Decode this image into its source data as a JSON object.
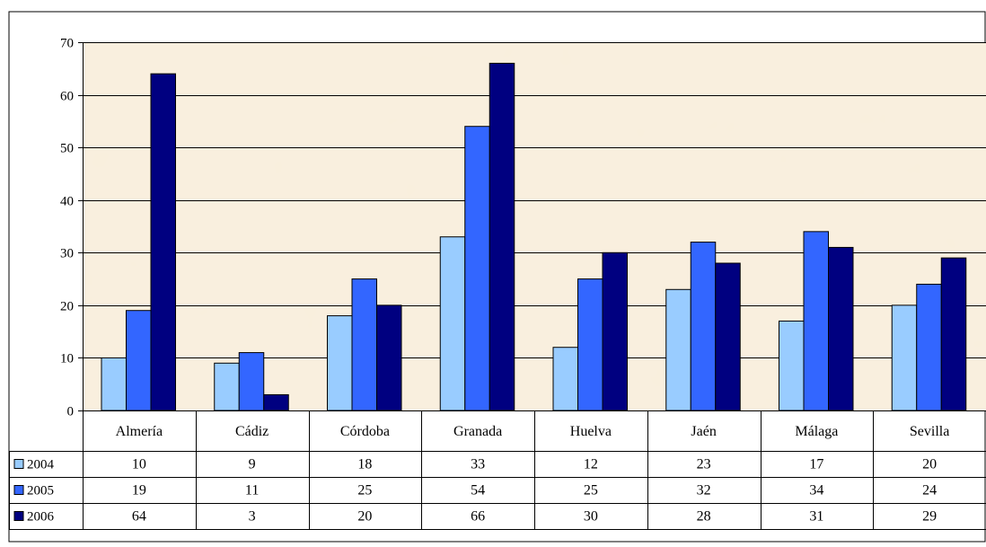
{
  "chart_data": {
    "type": "bar",
    "categories": [
      "Almería",
      "Cádiz",
      "Córdoba",
      "Granada",
      "Huelva",
      "Jaén",
      "Málaga",
      "Sevilla"
    ],
    "series": [
      {
        "name": "2004",
        "color": "#99CCFF",
        "values": [
          10,
          9,
          18,
          33,
          12,
          23,
          17,
          20
        ]
      },
      {
        "name": "2005",
        "color": "#3366FF",
        "values": [
          19,
          11,
          25,
          54,
          25,
          32,
          34,
          24
        ]
      },
      {
        "name": "2006",
        "color": "#000080",
        "values": [
          64,
          3,
          20,
          66,
          30,
          28,
          31,
          29
        ]
      }
    ],
    "yticks": [
      0,
      10,
      20,
      30,
      40,
      50,
      60,
      70
    ],
    "ylim": [
      0,
      70
    ],
    "grid": true,
    "legend": "data-table-left",
    "plot_background": "#F5E6C8"
  }
}
